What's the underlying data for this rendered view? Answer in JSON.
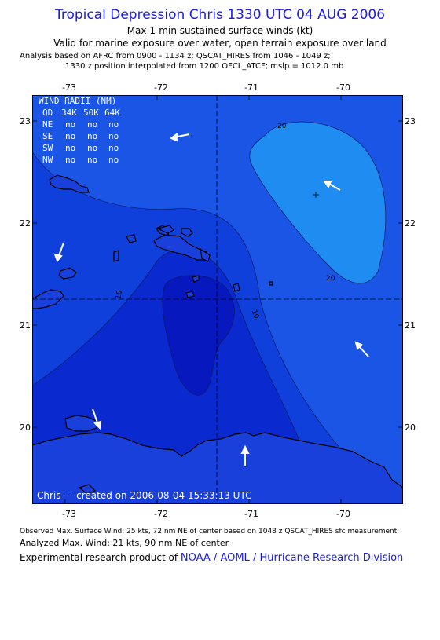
{
  "header": {
    "title": "Tropical Depression Chris 1330 UTC 04 AUG 2006",
    "subtitle1": "Max 1-min sustained surface winds (kt)",
    "subtitle2": "Valid for marine exposure over water, open terrain exposure over land",
    "analysis_line1": "Analysis based on  AFRC from 0900 - 1134 z;  QSCAT_HIRES from 1046 - 1049 z;",
    "analysis_line2": "1330 z position interpolated from 1200 OFCL_ATCF; mslp = 1012.0 mb"
  },
  "axes": {
    "lon_labels": [
      "-73",
      "-72",
      "-71",
      "-70"
    ],
    "lat_labels": [
      "23",
      "22",
      "21",
      "20"
    ]
  },
  "wind_radii": {
    "title": "WIND RADII (NM)",
    "header": [
      "QD",
      "34K",
      "50K",
      "64K"
    ],
    "rows": [
      [
        "NE",
        "no",
        "no",
        "no"
      ],
      [
        "SE",
        "no",
        "no",
        "no"
      ],
      [
        "SW",
        "no",
        "no",
        "no"
      ],
      [
        "NW",
        "no",
        "no",
        "no"
      ]
    ]
  },
  "contour_labels": [
    "20",
    "20",
    "10",
    "10",
    "10"
  ],
  "credit": "Chris — created on 2006-08-04 15:33:13 UTC",
  "footer": {
    "observed": "Observed Max. Surface Wind: 25 kts, 72 nm NE of center based on 1048 z QSCAT_HIRES sfc measurement",
    "analyzed": "Analyzed Max. Wind: 21 kts, 90 nm NE of center",
    "product_prefix": "Experimental research product of ",
    "product_org": "NOAA / AOML / Hurricane Research Division"
  },
  "colors": {
    "band_outer": "#1a55e6",
    "band_mid": "#1040dc",
    "band_inner": "#0a2ad0",
    "band_core": "#0718bf",
    "band_high": "#1e8cf0",
    "title_blue": "#1a1adc"
  }
}
